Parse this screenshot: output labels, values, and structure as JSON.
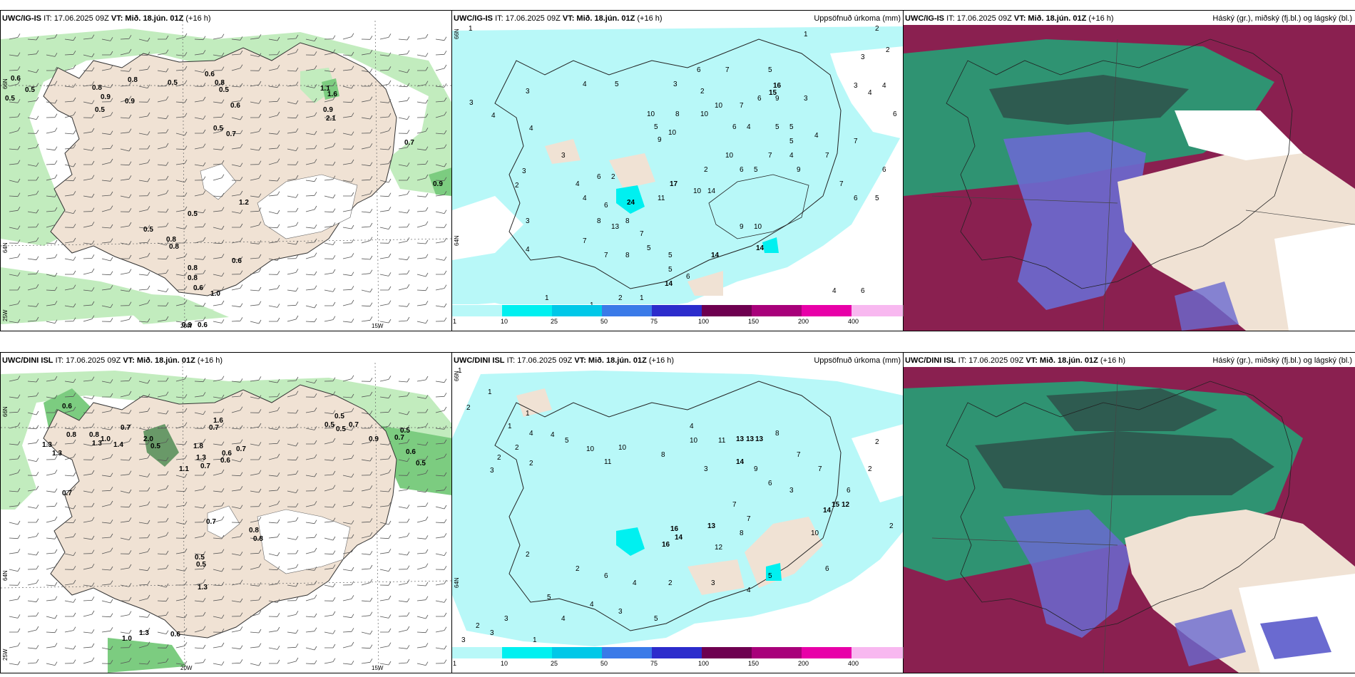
{
  "panels": {
    "ig_wind": {
      "model": "UWC/IG-IS",
      "it": "IT: 17.06.2025 09Z",
      "vt": "VT: Mið. 18.jún. 01Z",
      "lead": "(+16 h)",
      "lon_labels": [
        "20W",
        "15W"
      ],
      "lat_labels": [
        "66N",
        "64N",
        "25W"
      ],
      "values": [
        "0.6",
        "0.5",
        "0.5",
        "0.8",
        "0.9",
        "0.9",
        "0.5",
        "0.8",
        "0.5",
        "0.6",
        "0.8",
        "0.5",
        "0.5",
        "0.7",
        "0.6",
        "1.1",
        "1.6",
        "0.9",
        "2.1",
        "0.7",
        "0.9",
        "1.2",
        "0.5",
        "0.5",
        "0.8",
        "0.8",
        "0.6",
        "0.8",
        "0.8",
        "0.6",
        "1.0",
        "0.9",
        "0.6"
      ]
    },
    "ig_precip": {
      "model": "UWC/IG-IS",
      "it": "IT: 17.06.2025 09Z",
      "vt": "VT: Mið. 18.jún. 01Z",
      "lead": "(+16 h)",
      "title": "Uppsöfnuð úrkoma (mm)",
      "lat_labels": [
        "66N",
        "64N"
      ],
      "values": [
        "1",
        "3",
        "4",
        "3",
        "4",
        "4",
        "5",
        "3",
        "2",
        "10",
        "7",
        "6",
        "9",
        "5",
        "10",
        "9",
        "10",
        "8",
        "10",
        "16",
        "15",
        "2",
        "5",
        "4",
        "9",
        "7",
        "4",
        "7",
        "7",
        "6",
        "5",
        "6",
        "6",
        "4",
        "3",
        "3",
        "4",
        "2",
        "3",
        "2",
        "17",
        "14",
        "11",
        "10",
        "24",
        "14",
        "8",
        "8",
        "13",
        "5",
        "7",
        "4",
        "3",
        "7",
        "8",
        "7",
        "5",
        "14",
        "6",
        "5",
        "14",
        "1",
        "2",
        "1",
        "1",
        "9",
        "10",
        "10",
        "6",
        "5",
        "7",
        "6",
        "4",
        "5",
        "5",
        "3",
        "5",
        "7",
        "6",
        "3",
        "4",
        "6",
        "4",
        "6",
        "2",
        "2",
        "1",
        "4",
        "6"
      ]
    },
    "ig_cloud": {
      "model": "UWC/IG-IS",
      "it": "IT: 17.06.2025 09Z",
      "vt": "VT: Mið. 18.jún. 01Z",
      "lead": "(+16 h)",
      "title": "Háský (gr.), miðský (fj.bl.) og lágský (bl.)"
    },
    "dini_wind": {
      "model": "UWC/DINI ISL",
      "it": "IT: 17.06.2025 09Z",
      "vt": "VT: Mið. 18.jún. 01Z",
      "lead": "(+16 h)",
      "lon_labels": [
        "20W",
        "15W"
      ],
      "lat_labels": [
        "66N",
        "64N",
        "25W"
      ],
      "values": [
        "0.6",
        "1.3",
        "0.8",
        "1.3",
        "1.3",
        "0.8",
        "1.0",
        "0.7",
        "1.4",
        "2.0",
        "0.5",
        "1.1",
        "1.8",
        "1.3",
        "0.7",
        "0.6",
        "0.6",
        "0.7",
        "1.6",
        "0.7",
        "0.5",
        "0.5",
        "0.7",
        "0.9",
        "0.5",
        "0.7",
        "0.6",
        "0.5",
        "0.5",
        "0.7",
        "0.7",
        "0.8",
        "0.8",
        "0.5",
        "0.5",
        "1.3",
        "1.0",
        "1.3",
        "0.6"
      ]
    },
    "dini_precip": {
      "model": "UWC/DINI ISL",
      "it": "IT: 17.06.2025 09Z",
      "vt": "VT: Mið. 18.jún. 01Z",
      "lead": "(+16 h)",
      "title": "Uppsöfnuð úrkoma (mm)",
      "lat_labels": [
        "66N",
        "64N"
      ],
      "values": [
        "1",
        "1",
        "2",
        "1",
        "1",
        "4",
        "2",
        "2",
        "3",
        "2",
        "4",
        "5",
        "10",
        "11",
        "10",
        "13",
        "13",
        "13",
        "8",
        "7",
        "7",
        "11",
        "10",
        "8",
        "4",
        "3",
        "9",
        "14",
        "6",
        "3",
        "6",
        "2",
        "2",
        "2",
        "16",
        "14",
        "16",
        "13",
        "7",
        "7",
        "8",
        "12",
        "10",
        "14",
        "15",
        "12",
        "6",
        "5",
        "4",
        "3",
        "2",
        "4",
        "6",
        "2",
        "2",
        "3",
        "3",
        "2",
        "3",
        "5",
        "4",
        "4",
        "3",
        "5",
        "1"
      ]
    },
    "dini_cloud": {
      "model": "UWC/DINI ISL",
      "it": "IT: 17.06.2025 09Z",
      "vt": "VT: Mið. 18.jún. 01Z",
      "lead": "(+16 h)",
      "title": "Háský (gr.), miðský (fj.bl.) og lágský (bl.)"
    }
  },
  "precip_colorbar": {
    "ticks": [
      "1",
      "10",
      "25",
      "50",
      "75",
      "100",
      "150",
      "200",
      "400"
    ],
    "colors": [
      "#b8f8f8",
      "#00f0f0",
      "#00c8e8",
      "#3a7ae8",
      "#2c2ccc",
      "#6e0050",
      "#a8007a",
      "#e800a8",
      "#f8b8f0"
    ]
  },
  "colors": {
    "land": "#f0e2d4",
    "wind_light": "#c2ecbe",
    "wind_mid": "#7ccc80",
    "precip": "#b8f8f8",
    "cloud_high": "#8a2050",
    "cloud_mid": "#1fa878",
    "cloud_low": "#6a6ad0"
  }
}
